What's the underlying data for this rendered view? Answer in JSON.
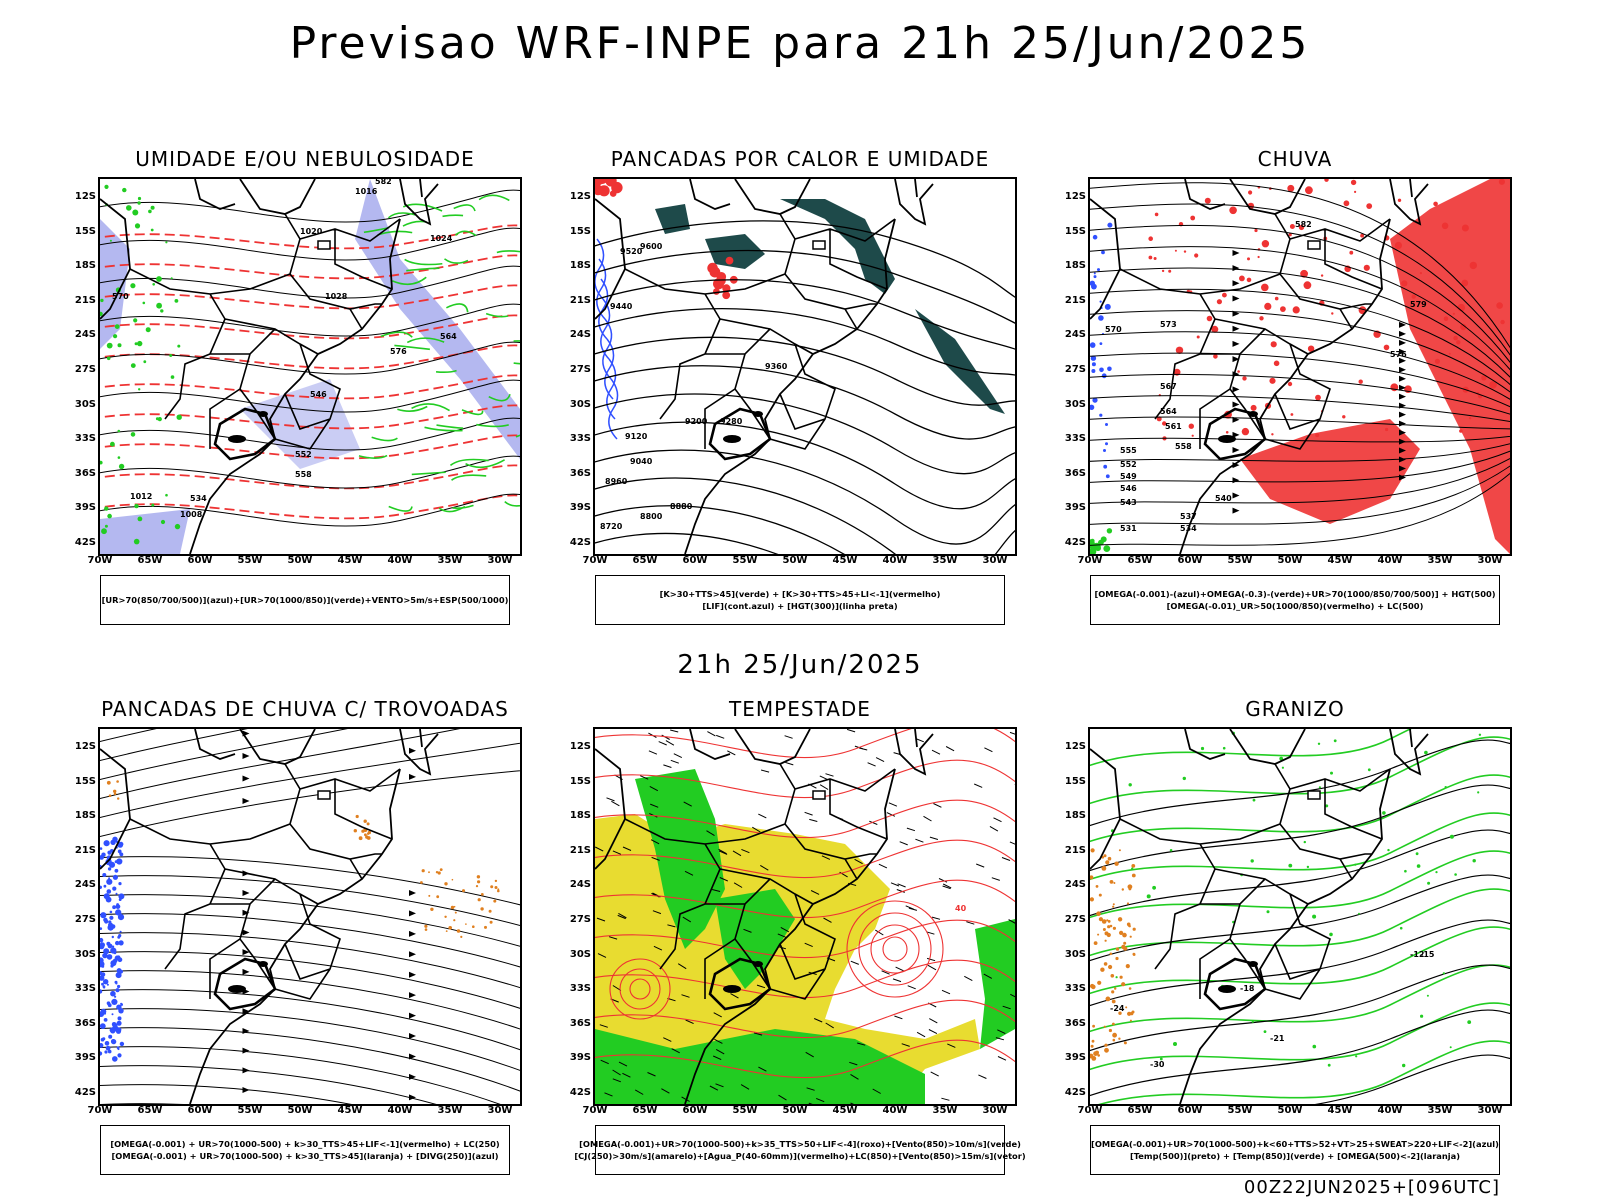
{
  "header": {
    "title": "Previsao WRF-INPE  para 21h 25/Jun/2025"
  },
  "mid_title": "21h 25/Jun/2025",
  "footer": "00Z22JUN2025+[096UTC]",
  "axes": {
    "lat_labels": [
      "12S",
      "15S",
      "18S",
      "21S",
      "24S",
      "27S",
      "30S",
      "33S",
      "36S",
      "39S",
      "42S"
    ],
    "lon_labels": [
      "70W",
      "65W",
      "60W",
      "55W",
      "50W",
      "45W",
      "40W",
      "35W",
      "30W"
    ]
  },
  "colors": {
    "blue": "#3050ff",
    "green": "#22cc22",
    "red": "#ee3333",
    "orange": "#e08020",
    "yellow": "#e8dc30",
    "darkteal": "#1e4a4a",
    "lavender": "#b4b8f0"
  },
  "panels": [
    {
      "title": "UMIDADE E/OU NEBULOSIDADE",
      "legend": [
        "[UR>70(850/700/500)](azul)+[UR>70(1000/850)](verde)+VENTO>5m/s+ESP(500/1000)"
      ],
      "contour_labels": [
        "1016",
        "1020",
        "1024",
        "564",
        "570",
        "576",
        "582",
        "558",
        "552",
        "546",
        "534",
        "1012",
        "1008",
        "1028"
      ]
    },
    {
      "title": "PANCADAS POR CALOR E UMIDADE",
      "legend": [
        "[K>30+TTS>45](verde)  +  [K>30+TTS>45+LI<-1](vermelho)",
        "[LIF](cont.azul)  +  [HGT(300)](linha preta)"
      ],
      "contour_labels": [
        "9600",
        "9520",
        "9440",
        "9360",
        "9280",
        "9200",
        "9120",
        "9040",
        "8960",
        "8880",
        "8800",
        "8720"
      ]
    },
    {
      "title": "CHUVA",
      "legend": [
        "[OMEGA(-0.001)-(azul)+OMEGA(-0.3)-(verde)+UR>70(1000/850/700/500)]  +  HGT(500)",
        "[OMEGA(-0.01)_UR>50(1000/850)(vermelho)  +  LC(500)"
      ],
      "contour_labels": [
        "582",
        "579",
        "576",
        "573",
        "570",
        "567",
        "564",
        "561",
        "558",
        "555",
        "552",
        "549",
        "546",
        "543",
        "540",
        "537",
        "534",
        "531"
      ]
    },
    {
      "title": "PANCADAS DE CHUVA C/ TROVOADAS",
      "legend": [
        "[OMEGA(-0.001)  +  UR>70(1000-500)  +  k>30_TTS>45+LIF<-1](vermelho)  +  LC(250)",
        "[OMEGA(-0.001)  +  UR>70(1000-500)  +  k>30_TTS>45](laranja)  +  [DIVG(250)](azul)"
      ],
      "contour_labels": []
    },
    {
      "title": "TEMPESTADE",
      "legend": [
        "[OMEGA(-0.001)+UR>70(1000-500)+k>35_TTS>50+LIF<-4](roxo)+[Vento(850)>10m/s](verde)",
        "[CJ(250)>30m/s](amarelo)+[Agua_P(40-60mm)](vermelho)+LC(850)+[Vento(850)>15m/s](vetor)"
      ],
      "contour_labels": [
        "40"
      ]
    },
    {
      "title": "GRANIZO",
      "legend": [
        "[OMEGA(-0.001)+UR>70(1000-500)+k<60+TTS>52+VT>25+SWEAT>220+LIF<-2](azul)",
        "[Temp(500)](preto)  +  [Temp(850)](verde)  +  [OMEGA(500)<-2](laranja)"
      ],
      "contour_labels": [
        "-15",
        "-18",
        "-21",
        "-24",
        "-12",
        "-30"
      ]
    }
  ]
}
